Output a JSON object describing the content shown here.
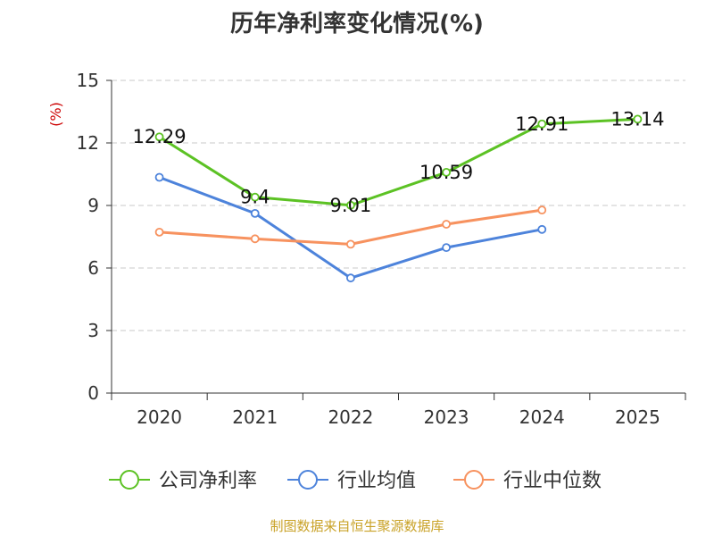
{
  "chart_data": {
    "type": "line",
    "title": "历年净利率变化情况(%)",
    "ylabel": "(%)",
    "xlabel": "",
    "categories": [
      "2020",
      "2021",
      "2022",
      "2023",
      "2024",
      "2025"
    ],
    "ylim": [
      0,
      15
    ],
    "yticks": [
      0,
      3,
      6,
      9,
      12,
      15
    ],
    "grid": true,
    "legend_position": "bottom",
    "series": [
      {
        "name": "公司净利率",
        "color": "#5cc224",
        "values": [
          12.29,
          9.4,
          9.01,
          10.59,
          12.91,
          13.14
        ],
        "data_labels": [
          "12.29",
          "9.4",
          "9.01",
          "10.59",
          "12.91",
          "13.14"
        ]
      },
      {
        "name": "行业均值",
        "color": "#4d83db",
        "values": [
          10.35,
          8.62,
          5.52,
          6.98,
          7.85,
          null
        ]
      },
      {
        "name": "行业中位数",
        "color": "#f7925f",
        "values": [
          7.72,
          7.4,
          7.14,
          8.1,
          8.78,
          null
        ]
      }
    ],
    "source": "制图数据来自恒生聚源数据库"
  }
}
